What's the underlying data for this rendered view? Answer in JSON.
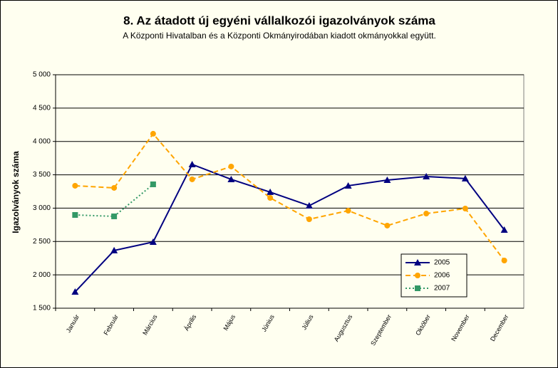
{
  "chart_data": {
    "type": "line",
    "title": "8. Az átadott új egyéni vállalkozói  igazolványok száma",
    "subtitle": "A Központi Hivatalban és a Központi Okmányirodában kiadott okmányokkal együtt.",
    "y_label": "Igazolványok száma",
    "categories": [
      "Január",
      "Február",
      "Március",
      "Április",
      "Május",
      "Június",
      "Július",
      "Augusztus",
      "Szeptember",
      "Október",
      "November",
      "December"
    ],
    "series": [
      {
        "name": "2005",
        "color": "#000080",
        "marker": "triangle",
        "dash": "solid",
        "values": [
          1745,
          2365,
          2493,
          3656,
          3432,
          3240,
          3037,
          3336,
          3421,
          3474,
          3444,
          2674
        ]
      },
      {
        "name": "2006",
        "color": "#ffa500",
        "marker": "circle",
        "dash": "dashed",
        "values": [
          3336,
          3304,
          4115,
          3432,
          3624,
          3154,
          2834,
          2962,
          2738,
          2919,
          2994,
          2215
        ]
      },
      {
        "name": "2007",
        "color": "#339966",
        "marker": "square",
        "dash": "dotted",
        "values": [
          2898,
          2877,
          3357,
          null,
          null,
          null,
          null,
          null,
          null,
          null,
          null,
          null
        ]
      }
    ],
    "ylim": [
      1500,
      5000
    ],
    "yticks": [
      {
        "value": 1500,
        "label": "1 500"
      },
      {
        "value": 2000,
        "label": "2 000"
      },
      {
        "value": 2500,
        "label": "2 500"
      },
      {
        "value": 3000,
        "label": "3 000"
      },
      {
        "value": 3500,
        "label": "3 500"
      },
      {
        "value": 4000,
        "label": "4 000"
      },
      {
        "value": 4500,
        "label": "4 500"
      },
      {
        "value": 5000,
        "label": "5 000"
      }
    ],
    "grid": true,
    "legend": "lower right"
  }
}
